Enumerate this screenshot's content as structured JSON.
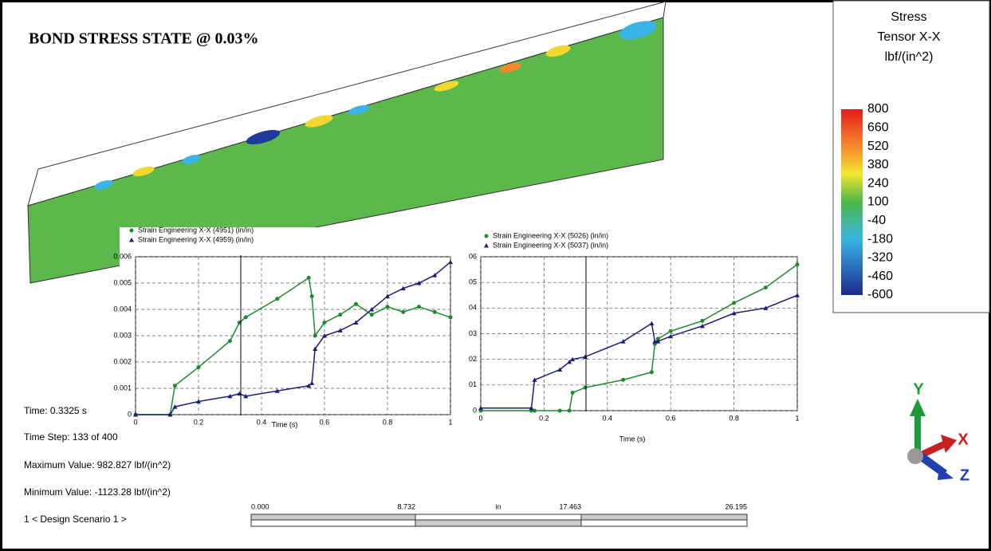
{
  "title": "BOND STRESS STATE @ 0.03%",
  "legend": {
    "title": [
      "Stress",
      "Tensor X-X",
      "lbf/(in^2)"
    ],
    "labels": [
      "800",
      "660",
      "520",
      "380",
      "240",
      "100",
      "-40",
      "-180",
      "-320",
      "-460",
      "-600"
    ]
  },
  "info": [
    "Time: 0.3325 s",
    "Time Step:  133 of 400",
    "Maximum Value: 982.827 lbf/(in^2)",
    "Minimum Value: -1123.28 lbf/(in^2)",
    "1 < Design Scenario 1 >"
  ],
  "scale_bar": [
    "0.000",
    "8.732",
    "in",
    "17.463",
    "26.195"
  ],
  "triad": [
    "Y",
    "X",
    "Z"
  ],
  "chart_data": [
    {
      "type": "line",
      "x_label": "Time (s)",
      "grid": true,
      "xlim": [
        0,
        1
      ],
      "xticks": [
        0,
        0.2,
        0.4,
        0.6,
        0.8,
        1
      ],
      "ylim": [
        0,
        0.006
      ],
      "yticks": [
        0,
        0.001,
        0.002,
        0.003,
        0.004,
        0.005,
        0.006
      ],
      "x": [
        0,
        0.11,
        0.125,
        0.2,
        0.3,
        0.33,
        0.35,
        0.45,
        0.55,
        0.56,
        0.57,
        0.6,
        0.65,
        0.7,
        0.75,
        0.8,
        0.85,
        0.9,
        0.95,
        1
      ],
      "series": [
        {
          "name": "Strain Engineering X-X (4951) (in/in)",
          "color": "#1e8a2e",
          "marker": "circle",
          "values": [
            0,
            0,
            0.0011,
            0.0018,
            0.0028,
            0.0035,
            0.0037,
            0.0044,
            0.0052,
            0.0045,
            0.003,
            0.0035,
            0.0038,
            0.0042,
            0.0038,
            0.0041,
            0.0039,
            0.0041,
            0.0039,
            0.0037
          ]
        },
        {
          "name": "Strain Engineering X-X (4959) (in/in)",
          "color": "#1c1f7a",
          "marker": "triangle",
          "values": [
            0,
            0,
            0.0003,
            0.0005,
            0.0007,
            0.0008,
            0.0007,
            0.0009,
            0.0011,
            0.0012,
            0.0025,
            0.003,
            0.0032,
            0.0035,
            0.004,
            0.0045,
            0.0048,
            0.005,
            0.0053,
            0.0058
          ]
        }
      ]
    },
    {
      "type": "line",
      "x_label": "Time (s)",
      "grid": true,
      "xlim": [
        0,
        1
      ],
      "xticks": [
        0,
        0.2,
        0.4,
        0.6,
        0.8,
        1
      ],
      "ylim": [
        0,
        6
      ],
      "yticks": [
        0,
        {
          "value": 1,
          "label": "01"
        },
        {
          "value": 2,
          "label": "02"
        },
        {
          "value": 3,
          "label": "03"
        },
        {
          "value": 4,
          "label": "04"
        },
        {
          "value": 5,
          "label": "05"
        },
        {
          "value": 6,
          "label": "06"
        }
      ],
      "x": [
        0,
        0.16,
        0.17,
        0.25,
        0.28,
        0.29,
        0.33,
        0.45,
        0.54,
        0.55,
        0.56,
        0.6,
        0.7,
        0.8,
        0.9,
        1
      ],
      "series": [
        {
          "name": "Strain Engineering X-X (5026) (in/in)",
          "color": "#1e8a2e",
          "marker": "circle",
          "values": [
            0,
            0,
            0,
            0,
            0,
            0.7,
            0.9,
            1.2,
            1.5,
            2.6,
            2.8,
            3.1,
            3.5,
            4.2,
            4.8,
            5.7
          ]
        },
        {
          "name": "Strain Engineering X-X (5037) (in/in)",
          "color": "#1c1f7a",
          "marker": "triangle",
          "values": [
            0.1,
            0.1,
            1.2,
            1.6,
            1.9,
            2.0,
            2.1,
            2.7,
            3.4,
            2.7,
            2.7,
            2.9,
            3.3,
            3.8,
            4.0,
            4.5
          ]
        }
      ]
    }
  ]
}
